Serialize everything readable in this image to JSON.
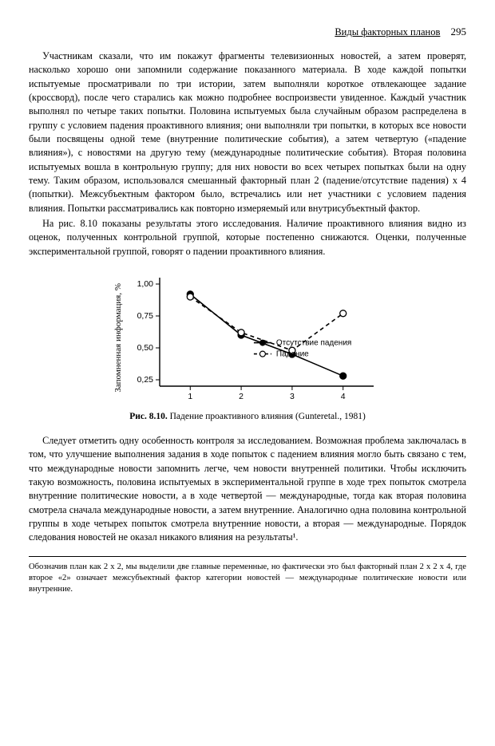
{
  "header": {
    "section_title": "Виды факторных планов",
    "page_number": "295"
  },
  "paragraphs": {
    "p1": "Участникам сказали, что им покажут фрагменты телевизионных новостей, а затем проверят, насколько хорошо они запомнили содержание показанного материала. В ходе каждой попытки испытуемые просматривали по три истории, затем выполняли короткое отвлекающее задание (кроссворд), после чего старались как можно подробнее воспроизвести увиденное. Каждый участник выполнял по четыре таких попытки. Половина испытуемых была случайным образом распределена в группу с условием падения проактивного влияния; они выполняли три попытки, в которых все новости были посвящены одной теме (внутренние политические события), а затем четвертую («падение влияния»), с новостями на другую тему (международные политические события). Вторая половина испытуемых вошла в контрольную группу; для них новости во всех четырех попытках были на одну тему. Таким образом, использовался смешанный факторный план 2 (падение/отсутствие падения) х 4 (попытки). Межсубъектным фактором было, встречались или нет участники с условием падения влияния. Попытки рассматривались как повторно измеряемый или внутрисубъектный фактор.",
    "p2": "На рис. 8.10 показаны результаты этого исследования. Наличие проактивного влияния видно из оценок, полученных контрольной группой, которые постепенно снижаются. Оценки, полученные экспериментальной группой, говорят о падении проактивного влияния.",
    "p3": "Следует отметить одну особенность контроля за исследованием. Возможная проблема заключалась в том, что улучшение выполнения задания в ходе попыток с падением влияния могло быть связано с тем, что международные новости запомнить легче, чем новости внутренней политики. Чтобы исключить такую возможность, половина испытуемых в экспериментальной группе в ходе трех попыток смотрела внутренние политические новости, а в ходе четвертой — международные, тогда как вторая половина смотрела сначала международные новости, а затем внутренние. Аналогично одна половина контрольной группы в ходе четырех попыток смотрела внутренние новости, а вторая — международные. Порядок следования новостей не оказал никакого влияния на результаты¹."
  },
  "chart": {
    "type": "line",
    "y_label": "Запомненная информация, %",
    "x_categories": [
      "1",
      "2",
      "3",
      "4"
    ],
    "y_ticks": [
      "0,25",
      "0,50",
      "0,75",
      "1,00"
    ],
    "y_tick_values": [
      0.25,
      0.5,
      0.75,
      1.0
    ],
    "ylim": [
      0.2,
      1.05
    ],
    "series": [
      {
        "name": "Отсутствие падения",
        "marker": "filled-circle",
        "dash": "solid",
        "color": "#000000",
        "values": [
          0.92,
          0.6,
          0.45,
          0.28
        ]
      },
      {
        "name": "Падение",
        "marker": "open-circle",
        "dash": "dashed",
        "color": "#000000",
        "values": [
          0.9,
          0.62,
          0.48,
          0.77
        ]
      }
    ],
    "axis_color": "#000000",
    "background_color": "#ffffff",
    "line_width": 1.6,
    "marker_size": 4
  },
  "caption": {
    "label": "Рис. 8.10.",
    "text": "Падение проактивного влияния (Gunteretal., 1981)"
  },
  "footnote": "Обозначив план как 2 х 2, мы выделили две главные переменные, но фактически это был факторный план 2 х 2 х 4, где второе «2» означает межсубъектный фактор категории новостей — международные политические новости или внутренние."
}
